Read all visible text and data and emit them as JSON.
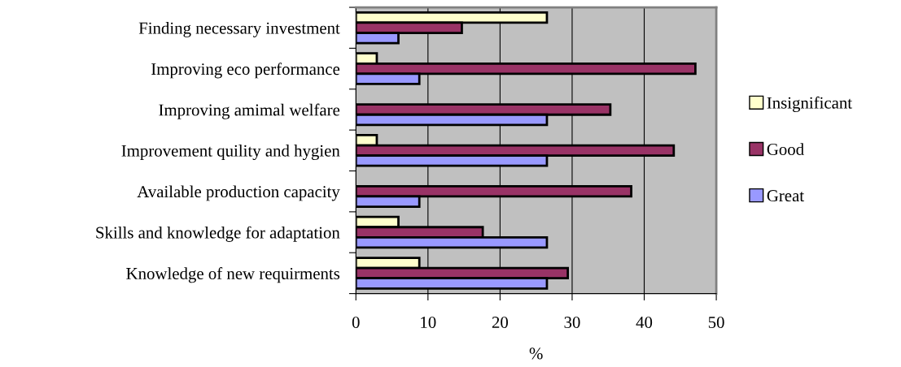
{
  "chart_data": {
    "type": "bar",
    "orientation": "horizontal",
    "xlabel": "%",
    "categories": [
      "Finding necessary investment",
      "Improving eco performance",
      "Improving amimal welfare",
      "Improvement quility and hygien",
      "Available production capacity",
      "Skills and knowledge for adaptation",
      "Knowledge of new requirments"
    ],
    "series": [
      {
        "name": "Insignificant",
        "color": "#ffffcc",
        "values": [
          26.5,
          2.9,
          null,
          2.9,
          null,
          5.9,
          8.8
        ]
      },
      {
        "name": "Good",
        "color": "#993366",
        "values": [
          14.7,
          47.1,
          35.3,
          44.1,
          38.2,
          17.6,
          29.4
        ]
      },
      {
        "name": "Great",
        "color": "#9999ff",
        "values": [
          5.9,
          8.8,
          26.5,
          26.5,
          8.8,
          26.5,
          26.5
        ]
      }
    ],
    "xlim": [
      0,
      50
    ],
    "xticks": [
      0,
      10,
      20,
      30,
      40,
      50
    ],
    "grid": "x",
    "legend": "right"
  }
}
